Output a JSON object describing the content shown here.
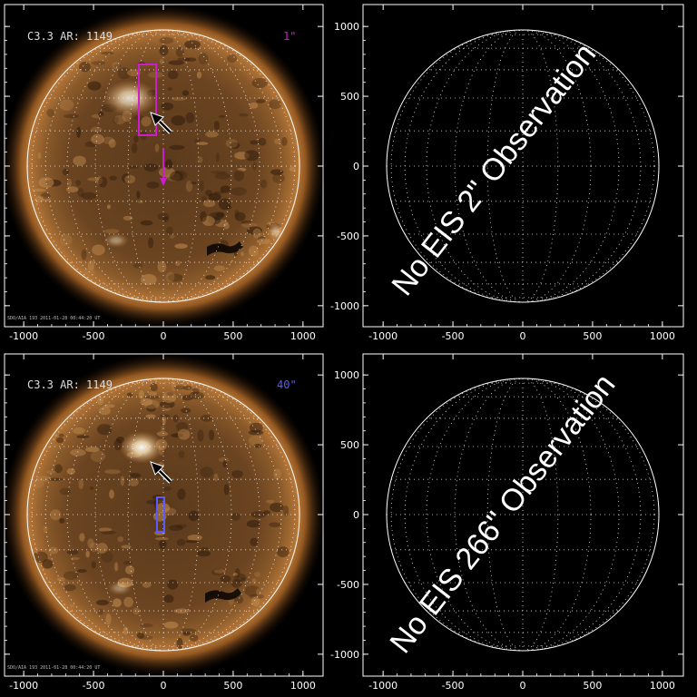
{
  "panels": [
    {
      "id": "top-left",
      "flare_label": "C3.3 AR: 1149",
      "slit_label": "1\"",
      "slit_color": "#cc1fcc",
      "has_sun_image": true,
      "footer_text": "SDO/AIA 193 2011-01-28 00:44:20 UT"
    },
    {
      "id": "top-right",
      "message": "No EIS 2\" Observation",
      "has_sun_image": false
    },
    {
      "id": "bottom-left",
      "flare_label": "C3.3 AR: 1149",
      "slit_label": "40\"",
      "slit_color": "#5a5aff",
      "has_sun_image": true,
      "footer_text": "SDO/AIA 193 2011-01-28 00:44:20 UT"
    },
    {
      "id": "bottom-right",
      "message": "No EIS 266\" Observation",
      "has_sun_image": false
    }
  ],
  "axis_ticks": {
    "x": [
      "-1000",
      "-500",
      "0",
      "500",
      "1000"
    ],
    "y": [
      "1000",
      "500",
      "0",
      "-500",
      "-1000"
    ]
  },
  "colors": {
    "background": "#000000",
    "frame": "#ffffff",
    "sun_core": "#6b4421",
    "sun_limb": "#c07a33",
    "corona": "#e6a355",
    "arrow": "#000000"
  }
}
